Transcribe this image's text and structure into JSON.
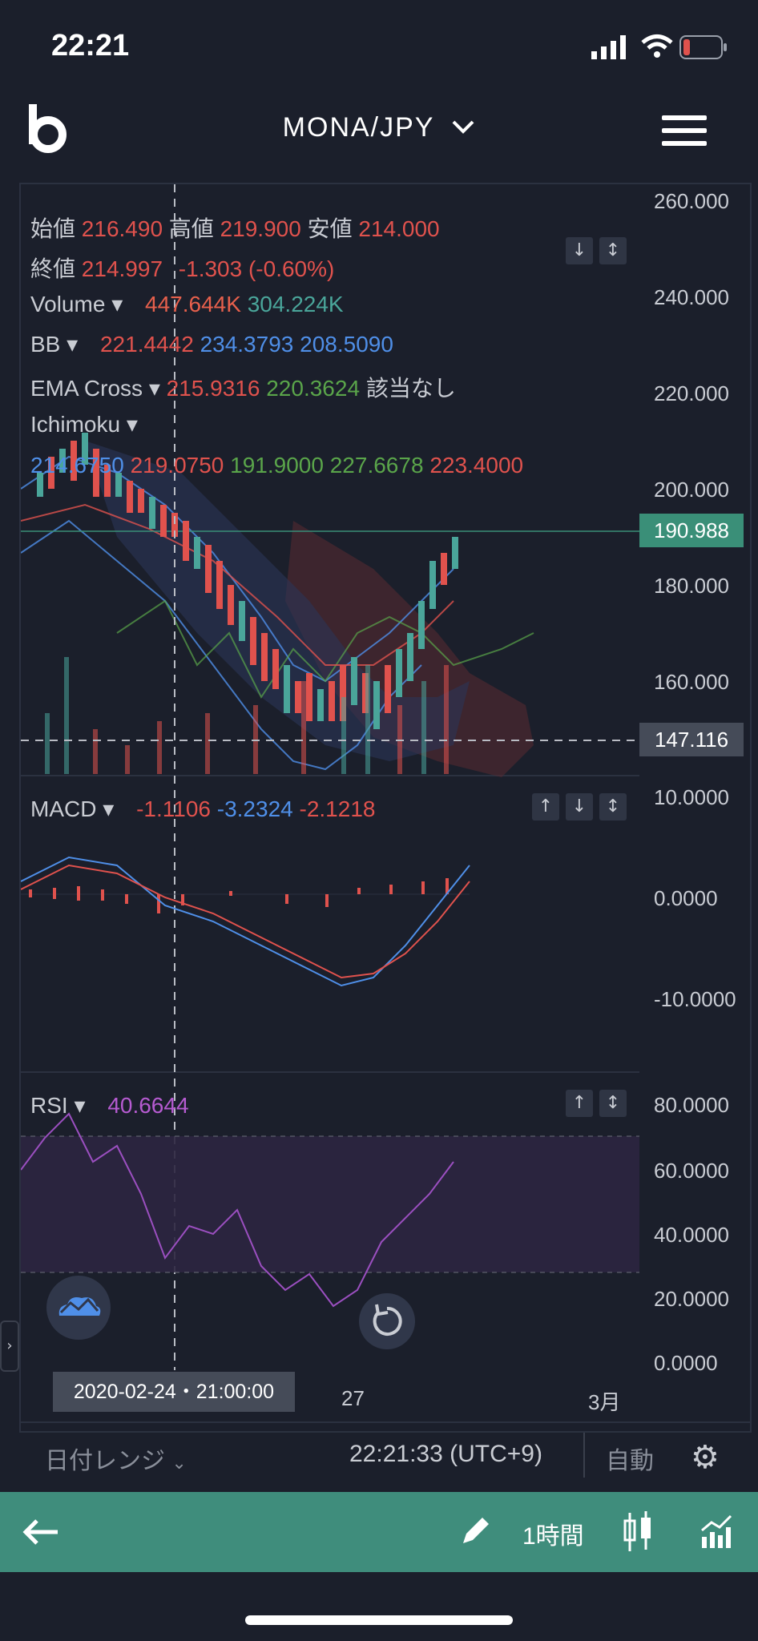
{
  "status": {
    "time": "22:21"
  },
  "header": {
    "pair": "MONA/JPY"
  },
  "legend": {
    "open_label": "始値",
    "open": "216.490",
    "high_label": "高値",
    "high": "219.900",
    "low_label": "安値",
    "low": "214.000",
    "close_label": "終値",
    "close": "214.997",
    "change": "-1.303 (-0.60%)",
    "volume_label": "Volume",
    "volume_1": "447.644K",
    "volume_2": "304.224K",
    "bb_label": "BB",
    "bb_1": "221.4442",
    "bb_2": "234.3793",
    "bb_3": "208.5090",
    "ema_label": "EMA Cross",
    "ema_1": "215.9316",
    "ema_2": "220.3624",
    "ema_3": "該当なし",
    "ichimoku_label": "Ichimoku",
    "ichi_1": "214.6750",
    "ichi_2": "219.0750",
    "ichi_3": "191.9000",
    "ichi_4": "227.6678",
    "ichi_5": "223.4000"
  },
  "price_axis": [
    "260.000",
    "240.000",
    "220.000",
    "200.000",
    "180.000",
    "160.000"
  ],
  "price_badge": "190.988",
  "cross_badge": "147.116",
  "macd": {
    "label": "MACD",
    "v1": "-1.1106",
    "v2": "-3.2324",
    "v3": "-2.1218",
    "axis": [
      "10.0000",
      "0.0000",
      "-10.0000"
    ]
  },
  "rsi": {
    "label": "RSI",
    "v1": "40.6644",
    "axis": [
      "80.0000",
      "60.0000",
      "40.0000",
      "20.0000",
      "0.0000"
    ]
  },
  "time_axis": {
    "crosshair_date": "2020-02-24・21:00:00",
    "tick_1": "27",
    "tick_2": "3月"
  },
  "bottom_info": {
    "date_range": "日付レンジ",
    "clock": "22:21:33 (UTC+9)",
    "auto": "自動"
  },
  "footer": {
    "interval": "1時間"
  },
  "colors": {
    "background": "#1b1f2b",
    "footer": "#3f8d7c",
    "up": "#4aa59a",
    "down": "#e0524d",
    "badge": "#3a8f78"
  }
}
